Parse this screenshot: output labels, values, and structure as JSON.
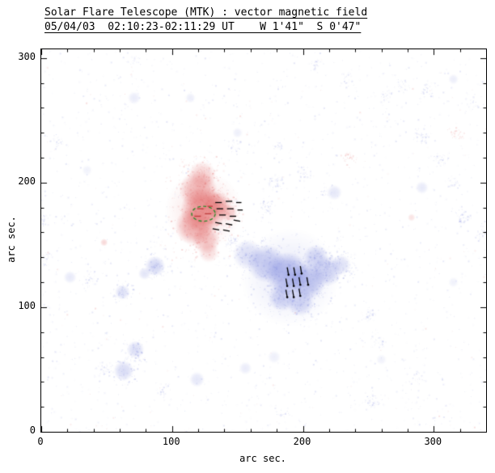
{
  "chart_data": {
    "type": "heatmap",
    "title": "Solar Flare Telescope (MTK) : vector magnetic field",
    "subtitle": "05/04/03  02:10:23-02:11:29 UT    W 1'41\"  S 0'47\"",
    "xlabel": "arc sec.",
    "ylabel": "arc sec.",
    "xlim": [
      0,
      340
    ],
    "ylim": [
      0,
      307
    ],
    "xticks": [
      0,
      100,
      200,
      300
    ],
    "yticks": [
      0,
      100,
      200,
      300
    ],
    "minor_tick_step": 20,
    "grid": false,
    "legend": "none",
    "colors": {
      "positive_polarity": "#e06060",
      "negative_polarity": "#7b86dd",
      "vector_black": "#000000",
      "contour_green": "#2e8b2e",
      "contour_red": "#c04040",
      "frame": "#000000",
      "background": "#ffffff"
    },
    "field_regions": [
      {
        "polarity": "+",
        "x": 124,
        "y": 178,
        "r": 30,
        "intensity": 0.13
      },
      {
        "polarity": "+",
        "x": 123,
        "y": 206,
        "r": 11,
        "intensity": 0.3
      },
      {
        "polarity": "+",
        "x": 120,
        "y": 194,
        "r": 15,
        "intensity": 0.45
      },
      {
        "polarity": "+",
        "x": 124,
        "y": 178,
        "r": 18,
        "intensity": 0.65
      },
      {
        "polarity": "+",
        "x": 117,
        "y": 165,
        "r": 15,
        "intensity": 0.5
      },
      {
        "polarity": "+",
        "x": 126,
        "y": 154,
        "r": 11,
        "intensity": 0.38
      },
      {
        "polarity": "+",
        "x": 134,
        "y": 182,
        "r": 11,
        "intensity": 0.45
      },
      {
        "polarity": "+",
        "x": 143,
        "y": 176,
        "r": 7,
        "intensity": 0.32
      },
      {
        "polarity": "+",
        "x": 128,
        "y": 144,
        "r": 8,
        "intensity": 0.22
      },
      {
        "polarity": "-",
        "x": 190,
        "y": 124,
        "r": 38,
        "intensity": 0.13
      },
      {
        "polarity": "-",
        "x": 158,
        "y": 142,
        "r": 12,
        "intensity": 0.28
      },
      {
        "polarity": "-",
        "x": 172,
        "y": 135,
        "r": 15,
        "intensity": 0.42
      },
      {
        "polarity": "-",
        "x": 188,
        "y": 127,
        "r": 17,
        "intensity": 0.58
      },
      {
        "polarity": "-",
        "x": 203,
        "y": 121,
        "r": 15,
        "intensity": 0.5
      },
      {
        "polarity": "-",
        "x": 218,
        "y": 129,
        "r": 12,
        "intensity": 0.38
      },
      {
        "polarity": "-",
        "x": 229,
        "y": 134,
        "r": 8,
        "intensity": 0.26
      },
      {
        "polarity": "-",
        "x": 198,
        "y": 104,
        "r": 11,
        "intensity": 0.34
      },
      {
        "polarity": "-",
        "x": 184,
        "y": 108,
        "r": 11,
        "intensity": 0.36
      },
      {
        "polarity": "-",
        "x": 210,
        "y": 140,
        "r": 10,
        "intensity": 0.32
      },
      {
        "polarity": "-",
        "x": 87,
        "y": 133,
        "r": 8,
        "intensity": 0.34
      },
      {
        "polarity": "-",
        "x": 79,
        "y": 127,
        "r": 5,
        "intensity": 0.22
      },
      {
        "polarity": "-",
        "x": 62,
        "y": 112,
        "r": 6,
        "intensity": 0.26
      },
      {
        "polarity": "-",
        "x": 22,
        "y": 124,
        "r": 5,
        "intensity": 0.18
      },
      {
        "polarity": "-",
        "x": 72,
        "y": 66,
        "r": 7,
        "intensity": 0.28
      },
      {
        "polarity": "-",
        "x": 63,
        "y": 49,
        "r": 8,
        "intensity": 0.3
      },
      {
        "polarity": "-",
        "x": 119,
        "y": 42,
        "r": 6,
        "intensity": 0.2
      },
      {
        "polarity": "-",
        "x": 156,
        "y": 51,
        "r": 5,
        "intensity": 0.16
      },
      {
        "polarity": "-",
        "x": 224,
        "y": 192,
        "r": 6,
        "intensity": 0.2
      },
      {
        "polarity": "-",
        "x": 291,
        "y": 196,
        "r": 5,
        "intensity": 0.18
      },
      {
        "polarity": "-",
        "x": 315,
        "y": 283,
        "r": 4,
        "intensity": 0.14
      },
      {
        "polarity": "-",
        "x": 71,
        "y": 268,
        "r": 5,
        "intensity": 0.16
      },
      {
        "polarity": "-",
        "x": 114,
        "y": 268,
        "r": 4,
        "intensity": 0.14
      },
      {
        "polarity": "-",
        "x": 150,
        "y": 240,
        "r": 4,
        "intensity": 0.13
      },
      {
        "polarity": "-",
        "x": 178,
        "y": 60,
        "r": 5,
        "intensity": 0.13
      },
      {
        "polarity": "-",
        "x": 260,
        "y": 58,
        "r": 4,
        "intensity": 0.11
      },
      {
        "polarity": "-",
        "x": 35,
        "y": 210,
        "r": 4,
        "intensity": 0.11
      },
      {
        "polarity": "-",
        "x": 315,
        "y": 120,
        "r": 4,
        "intensity": 0.11
      },
      {
        "polarity": "+",
        "x": 48,
        "y": 152,
        "r": 3,
        "intensity": 0.25
      },
      {
        "polarity": "+",
        "x": 283,
        "y": 172,
        "r": 3,
        "intensity": 0.18
      }
    ],
    "vectors": {
      "green_contour": {
        "x": 124,
        "y": 175,
        "rx": 9,
        "ry": 6
      },
      "contour_red_dashes": [
        [
          117,
          173,
          122,
          173
        ],
        [
          125,
          175,
          130,
          175
        ],
        [
          119,
          179,
          124,
          179
        ],
        [
          127,
          181,
          131,
          181
        ]
      ],
      "transverse_dashes_positive": [
        [
          133,
          184,
          138,
          184
        ],
        [
          141,
          185,
          146,
          185
        ],
        [
          149,
          184,
          153,
          184
        ],
        [
          134,
          179,
          139,
          179
        ],
        [
          142,
          179,
          147,
          179
        ],
        [
          150,
          178,
          154,
          178
        ],
        [
          136,
          174,
          141,
          174
        ],
        [
          144,
          173,
          149,
          173
        ],
        [
          133,
          168,
          138,
          167
        ],
        [
          141,
          167,
          146,
          166
        ],
        [
          131,
          163,
          136,
          162
        ],
        [
          139,
          162,
          144,
          161
        ],
        [
          147,
          170,
          152,
          169
        ]
      ],
      "field_vectors_negative": [
        [
          188,
          108,
          187,
          114
        ],
        [
          193,
          108,
          192,
          114
        ],
        [
          198,
          109,
          197,
          115
        ],
        [
          188,
          117,
          187,
          123
        ],
        [
          193,
          117,
          192,
          123
        ],
        [
          198,
          118,
          197,
          124
        ],
        [
          189,
          126,
          188,
          132
        ],
        [
          194,
          126,
          193,
          132
        ],
        [
          199,
          127,
          198,
          133
        ],
        [
          204,
          118,
          203,
          124
        ]
      ]
    },
    "noise": {
      "seed": 11,
      "uniform_count": 1900,
      "cluster_count": 34,
      "cluster_size": 40,
      "cluster_spread": 9,
      "red_fraction": 0.07,
      "min_alpha": 0.04,
      "max_alpha": 0.2
    }
  }
}
